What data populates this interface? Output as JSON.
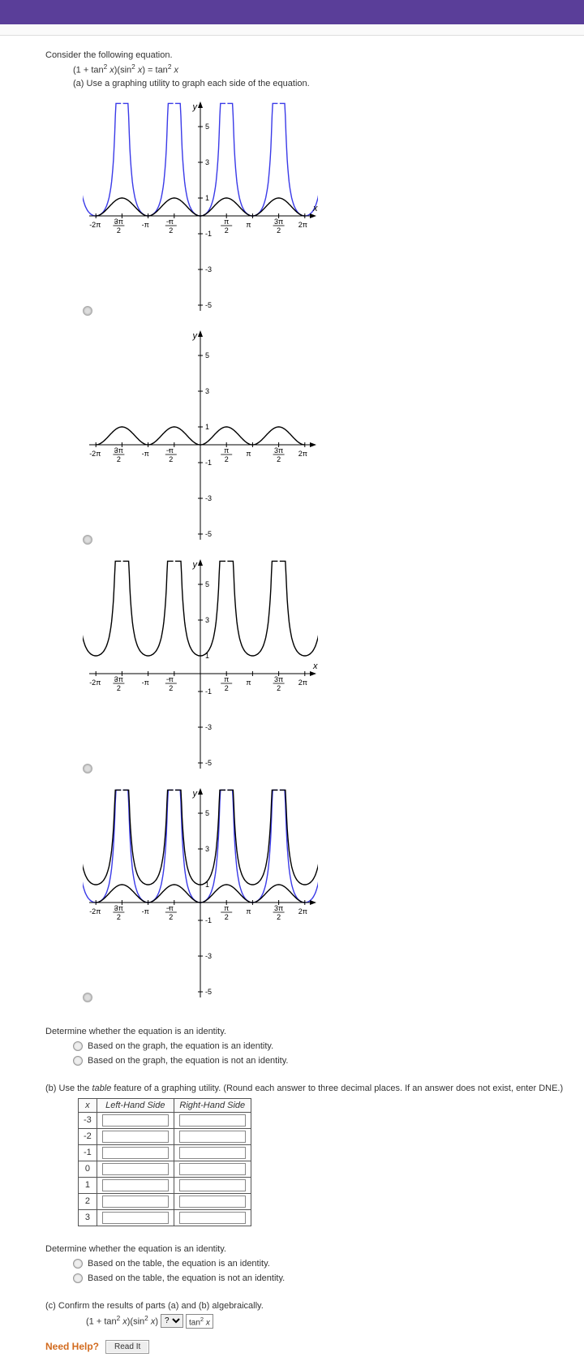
{
  "intro": "Consider the following equation.",
  "equation_html": "(1 + tan² x)(sin² x) = tan² x",
  "part_a": "(a) Use a graphing utility to graph each side of the equation.",
  "graphs": [
    {
      "top": "blue-asym",
      "bottom": "black-humps"
    },
    {
      "top": "black-humps-flat"
    },
    {
      "top": "black-asym",
      "bottom": null
    },
    {
      "top": "both-overlay"
    }
  ],
  "y_ticks": [
    5,
    3,
    1,
    -1,
    -3,
    -5
  ],
  "y_label": "y",
  "x_label": "x",
  "x_ticks_plain": [
    "-2π",
    "-π",
    "π",
    "2π"
  ],
  "x_ticks_frac": [
    {
      "neg": true,
      "num": "3π",
      "den": "2"
    },
    {
      "neg": true,
      "num": "π",
      "den": "2"
    },
    {
      "neg": false,
      "num": "π",
      "den": "2"
    },
    {
      "neg": false,
      "num": "3π",
      "den": "2"
    }
  ],
  "determine_a": "Determine whether the equation is an identity.",
  "radio_a1": "Based on the graph, the equation is an identity.",
  "radio_a2": "Based on the graph, the equation is not an identity.",
  "part_b": "(b) Use the table feature of a graphing utility. (Round each answer to three decimal places. If an answer does not exist, enter DNE.)",
  "table_headers": [
    "x",
    "Left-Hand Side",
    "Right-Hand Side"
  ],
  "table_x": [
    "-3",
    "-2",
    "-1",
    "0",
    "1",
    "2",
    "3"
  ],
  "determine_b": "Determine whether the equation is an identity.",
  "radio_b1": "Based on the table, the equation is an identity.",
  "radio_b2": "Based on the table, the equation is not an identity.",
  "part_c": "(c) Confirm the results of parts (a) and (b) algebraically.",
  "alg_lhs_html": "(1 + tan² x)(sin² x)",
  "alg_rhs_html": "tan² x",
  "select_placeholder": "?",
  "need_help": "Need Help?",
  "read_it": "Read It",
  "colors": {
    "header": "#5a3e99",
    "curve_blue": "#3a3ae8",
    "curve_black": "#000000"
  }
}
